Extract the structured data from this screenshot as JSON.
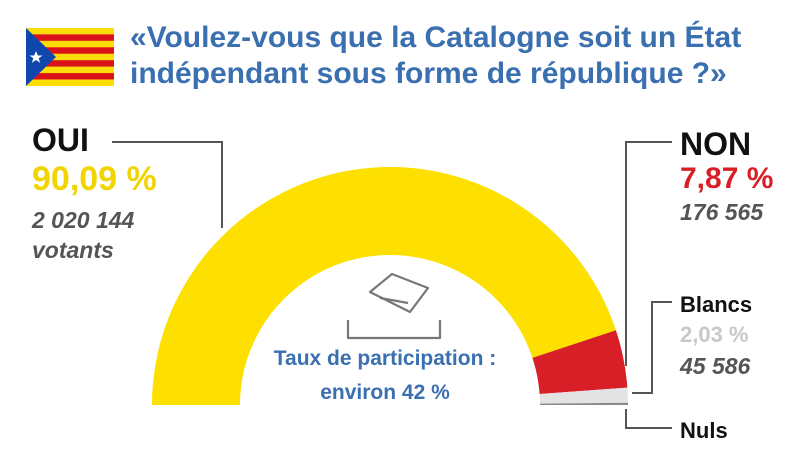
{
  "question": "«Voulez-vous que la Catalogne soit un État indépendant sous forme de république ?»",
  "flag_icon": "estelada-flag-icon",
  "participation": {
    "line1": "Taux de participation :",
    "line2": "environ 42 %"
  },
  "ballot_icon": "ballot-box-icon",
  "chart_data": {
    "type": "pie",
    "style": "semicircle",
    "title": "«Voulez-vous que la Catalogne soit un État indépendant sous forme de république ?»",
    "slices": [
      {
        "label": "OUI",
        "percent": "90,09 %",
        "value": 90.09,
        "votes": "2 020 144",
        "votes_unit": "votants",
        "color": "#fde000"
      },
      {
        "label": "NON",
        "percent": "7,87 %",
        "value": 7.87,
        "votes": "176 565",
        "color": "#d81e26"
      },
      {
        "label": "Blancs",
        "percent": "2,03 %",
        "value": 2.03,
        "votes": "45 586",
        "color": "#e3e3e3"
      },
      {
        "label": "Nuls",
        "percent": "",
        "value": 0.3,
        "color": "#8a8a8a"
      }
    ]
  }
}
